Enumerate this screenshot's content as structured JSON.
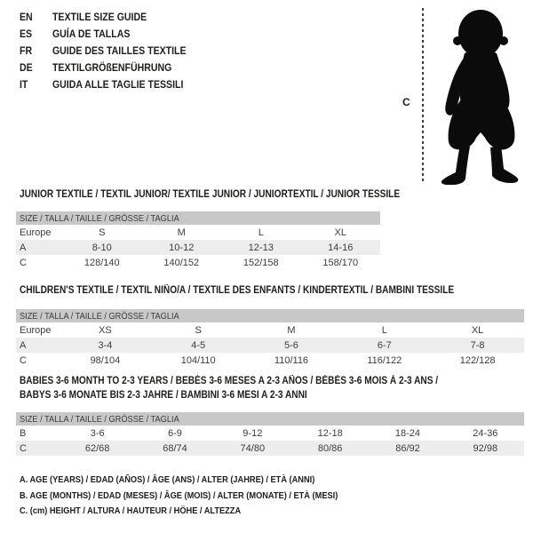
{
  "header": {
    "languages": [
      {
        "code": "EN",
        "title": "TEXTILE SIZE GUIDE"
      },
      {
        "code": "ES",
        "title": "GUÍA DE TALLAS"
      },
      {
        "code": "FR",
        "title": "GUIDE DES TAILLES TEXTILE"
      },
      {
        "code": "DE",
        "title": "TEXTILGRÖßENFÜHRUNG"
      },
      {
        "code": "IT",
        "title": "GUIDA ALLE TAGLIE TESSILI"
      }
    ]
  },
  "figure": {
    "measure_label": "C"
  },
  "size_row_header": "SIZE / TALLA / TAILLE / GRÖSSE / TAGLIA",
  "junior": {
    "title": "JUNIOR TEXTILE / TEXTIL JUNIOR/ TEXTILE JUNIOR / JUNIORTEXTIL / JUNIOR TESSILE",
    "rows": [
      {
        "label": "Europe",
        "values": [
          "S",
          "M",
          "L",
          "XL"
        ],
        "shaded": false
      },
      {
        "label": "A",
        "values": [
          "8-10",
          "10-12",
          "12-13",
          "14-16"
        ],
        "shaded": true
      },
      {
        "label": "C",
        "values": [
          "128/140",
          "140/152",
          "152/158",
          "158/170"
        ],
        "shaded": false
      }
    ]
  },
  "children": {
    "title": "CHILDREN'S TEXTILE / TEXTIL NIÑO/A / TEXTILE DES ENFANTS / KINDERTEXTIL / BAMBINI TESSILE",
    "rows": [
      {
        "label": "Europe",
        "values": [
          "XS",
          "S",
          "M",
          "L",
          "XL"
        ],
        "shaded": false
      },
      {
        "label": "A",
        "values": [
          "3-4",
          "4-5",
          "5-6",
          "6-7",
          "7-8"
        ],
        "shaded": true
      },
      {
        "label": "C",
        "values": [
          "98/104",
          "104/110",
          "110/116",
          "116/122",
          "122/128"
        ],
        "shaded": false
      }
    ]
  },
  "babies": {
    "title_line1": "BABIES 3-6 MONTH TO 2-3 YEARS / BEBÉS 3-6 MESES A 2-3 AÑOS / BÉBÉS 3-6 MOIS À 2-3 ANS /",
    "title_line2": "BABYS 3-6 MONATE BIS 2-3 JAHRE / BAMBINI 3-6 MESI A 2-3 ANNI",
    "rows": [
      {
        "label": "B",
        "values": [
          "3-6",
          "6-9",
          "9-12",
          "12-18",
          "18-24",
          "24-36"
        ],
        "shaded": false
      },
      {
        "label": "C",
        "values": [
          "62/68",
          "68/74",
          "74/80",
          "80/86",
          "86/92",
          "92/98"
        ],
        "shaded": true
      }
    ]
  },
  "notes": [
    "A. AGE (YEARS) / EDAD (AÑOS) / ÂGE (ANS) / ALTER (JAHRE) / ETÀ (ANNI)",
    "B. AGE (MONTHS) / EDAD (MESES) / ÂGE (MOIS) / ALTER (MONATE) / ETÀ (MESI)",
    "C. (cm) HEIGHT / ALTURA / HAUTEUR / HÖHE / ALTEZZA"
  ],
  "colors": {
    "header_bar": "#c8c8c8",
    "row_shaded": "#ededed",
    "text": "#1d1d1b",
    "silhouette": "#0b0b0b"
  }
}
